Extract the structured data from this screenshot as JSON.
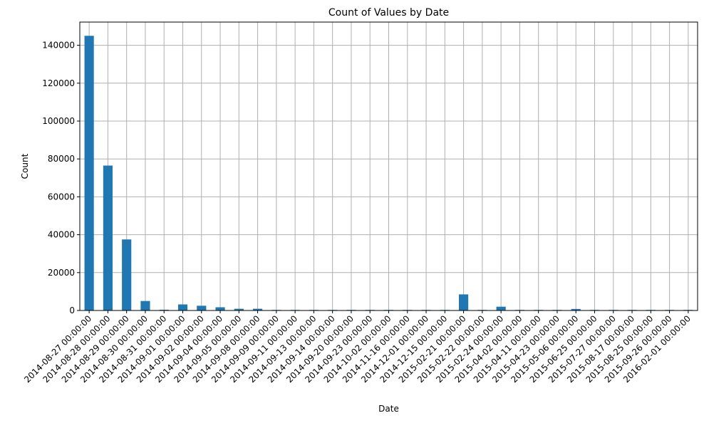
{
  "chart_data": {
    "type": "bar",
    "title": "Count of Values by Date",
    "xlabel": "Date",
    "ylabel": "Count",
    "categories": [
      "2014-08-27 00:00:00",
      "2014-08-28 00:00:00",
      "2014-08-29 00:00:00",
      "2014-08-30 00:00:00",
      "2014-08-31 00:00:00",
      "2014-09-01 00:00:00",
      "2014-09-02 00:00:00",
      "2014-09-04 00:00:00",
      "2014-09-05 00:00:00",
      "2014-09-08 00:00:00",
      "2014-09-09 00:00:00",
      "2014-09-11 00:00:00",
      "2014-09-13 00:00:00",
      "2014-09-14 00:00:00",
      "2014-09-20 00:00:00",
      "2014-09-23 00:00:00",
      "2014-10-02 00:00:00",
      "2014-11-16 00:00:00",
      "2014-12-01 00:00:00",
      "2014-12-15 00:00:00",
      "2015-02-21 00:00:00",
      "2015-02-22 00:00:00",
      "2015-02-24 00:00:00",
      "2015-04-02 00:00:00",
      "2015-04-11 00:00:00",
      "2015-04-23 00:00:00",
      "2015-05-06 00:00:00",
      "2015-06-25 00:00:00",
      "2015-07-27 00:00:00",
      "2015-08-17 00:00:00",
      "2015-08-25 00:00:00",
      "2015-09-26 00:00:00",
      "2016-02-01 00:00:00"
    ],
    "values": [
      145000,
      76500,
      37500,
      5000,
      400,
      3200,
      2500,
      1700,
      900,
      900,
      300,
      300,
      300,
      300,
      300,
      300,
      300,
      300,
      300,
      300,
      8500,
      300,
      2000,
      300,
      300,
      300,
      800,
      300,
      300,
      300,
      300,
      300,
      300
    ],
    "yticks": [
      0,
      20000,
      40000,
      60000,
      80000,
      100000,
      120000,
      140000
    ],
    "ylim": [
      0,
      152250
    ],
    "grid": true,
    "bar_color": "#1f77b4"
  }
}
